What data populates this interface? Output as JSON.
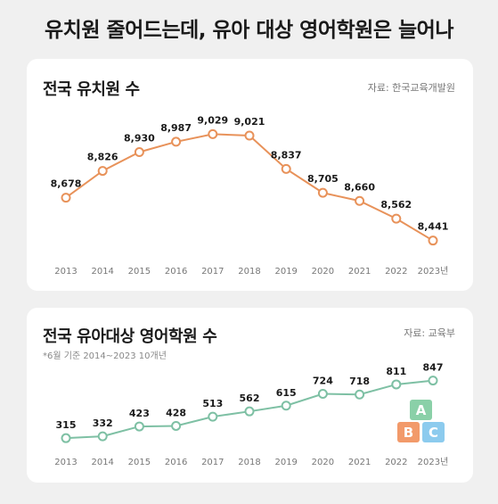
{
  "headline": "유치원 줄어드는데, 유아 대상 영어학원은 늘어나",
  "chart_data": [
    {
      "type": "line",
      "title": "전국 유치원 수",
      "source": "자료: 한국교육개발원",
      "categories": [
        "2013",
        "2014",
        "2015",
        "2016",
        "2017",
        "2018",
        "2019",
        "2020",
        "2021",
        "2022",
        "2023년"
      ],
      "values": [
        8678,
        8826,
        8930,
        8987,
        9029,
        9021,
        8837,
        8705,
        8660,
        8562,
        8441
      ],
      "value_labels": [
        "8,678",
        "8,826",
        "8,930",
        "8,987",
        "9,029",
        "9,021",
        "8,837",
        "8,705",
        "8,660",
        "8,562",
        "8,441"
      ],
      "line_color": "#e8925a",
      "grid": false
    },
    {
      "type": "line",
      "title": "전국 유아대상 영어학원 수",
      "source": "자료: 교육부",
      "note": "*6월 기준 2014~2023 10개년",
      "categories": [
        "2013",
        "2014",
        "2015",
        "2016",
        "2017",
        "2018",
        "2019",
        "2020",
        "2021",
        "2022",
        "2023년"
      ],
      "values": [
        315,
        332,
        423,
        428,
        513,
        562,
        615,
        724,
        718,
        811,
        847
      ],
      "value_labels": [
        "315",
        "332",
        "423",
        "428",
        "513",
        "562",
        "615",
        "724",
        "718",
        "811",
        "847"
      ],
      "line_color": "#7ec0a4",
      "grid": false
    }
  ],
  "blocks": [
    {
      "letter": "A",
      "color": "#8ad0a8"
    },
    {
      "letter": "B",
      "color": "#f29a6a"
    },
    {
      "letter": "C",
      "color": "#8ccbee"
    }
  ]
}
